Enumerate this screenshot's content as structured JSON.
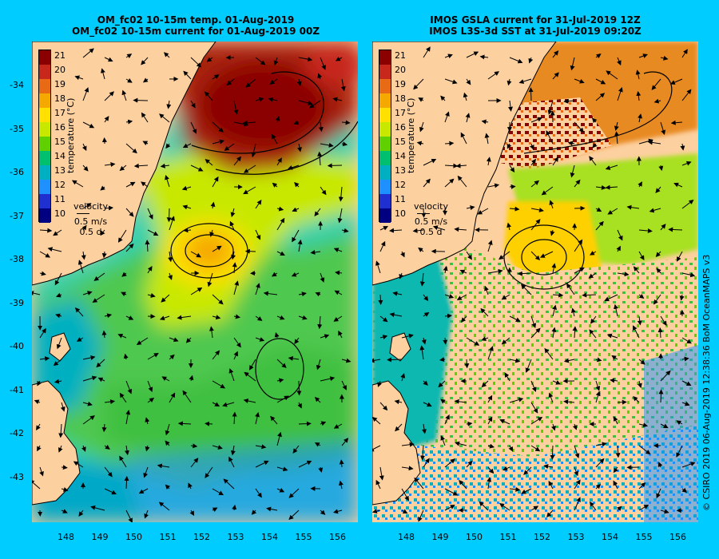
{
  "left_panel": {
    "title_line1": "OM_fc02 10-15m temp. 01-Aug-2019",
    "title_line2": "OM_fc02 10-15m current for 01-Aug-2019 00Z"
  },
  "right_panel": {
    "title_line1": "IMOS GSLA current for 31-Jul-2019 12Z",
    "title_line2": "IMOS L3S-3d SST at 31-Jul-2019 09:20Z"
  },
  "colorbar": {
    "label": "temperature (°C)",
    "ticks": [
      "21",
      "20",
      "19",
      "18",
      "17",
      "16",
      "15",
      "14",
      "13",
      "12",
      "11",
      "10"
    ],
    "colors": [
      "#8b0000",
      "#c8281c",
      "#e86a14",
      "#f5a800",
      "#ffe000",
      "#c8e800",
      "#60d000",
      "#00c070",
      "#00b0c0",
      "#1e90ff",
      "#2030d0",
      "#000080"
    ]
  },
  "velocity_key": {
    "label": "velocity",
    "speed": "0.5 m/s",
    "duration": "0.5 d"
  },
  "lat_ticks": [
    "-34",
    "-35",
    "-36",
    "-37",
    "-38",
    "-39",
    "-40",
    "-41",
    "-42",
    "-43"
  ],
  "lon_ticks": [
    "148",
    "149",
    "150",
    "151",
    "152",
    "153",
    "154",
    "155",
    "156"
  ],
  "credit": "© CSIRO 2019   06-Aug-2019 12:38:36 BoM OceanMAPS v3",
  "colors": {
    "background": "#00ccff",
    "land": "#fdd0a0"
  }
}
